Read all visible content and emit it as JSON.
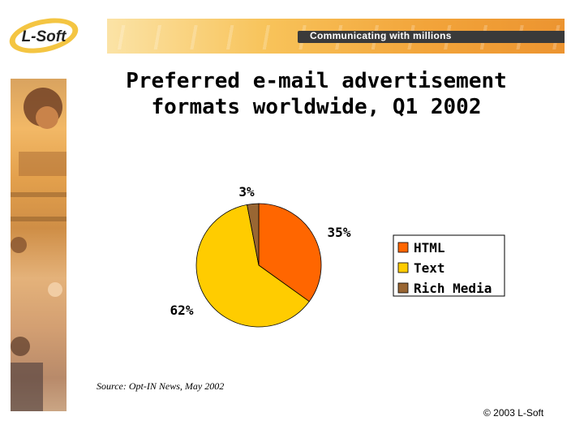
{
  "header": {
    "logo_text": "L-Soft",
    "tagline": "Communicating with millions"
  },
  "slide": {
    "title_line1": "Preferred e-mail advertisement",
    "title_line2": "formats worldwide, Q1 2002",
    "source": "Source: Opt-IN News, May 2002",
    "copyright": "© 2003 L-Soft"
  },
  "chart_data": {
    "type": "pie",
    "title": "Preferred e-mail advertisement formats worldwide, Q1 2002",
    "slices": [
      {
        "label": "HTML",
        "value": 35,
        "display": "35%",
        "color": "#ff6600"
      },
      {
        "label": "Text",
        "value": 62,
        "display": "62%",
        "color": "#ffcc00"
      },
      {
        "label": "Rich Media",
        "value": 3,
        "display": "3%",
        "color": "#996633"
      }
    ],
    "legend_placement": "right"
  }
}
